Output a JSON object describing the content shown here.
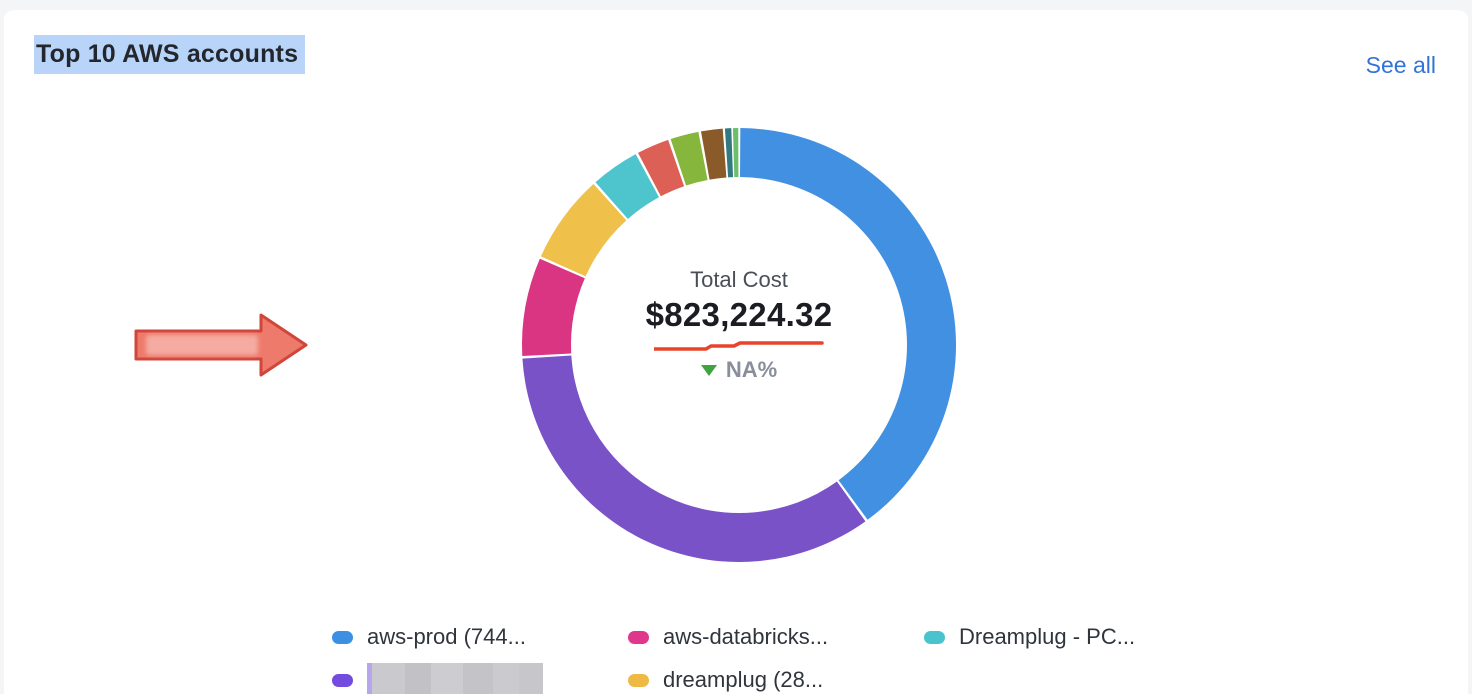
{
  "page": {
    "title": "Top 10 AWS accounts",
    "see_all_label": "See all"
  },
  "chart_data": {
    "type": "pie",
    "subtype": "donut",
    "title": "Top 10 AWS accounts",
    "center": {
      "label": "Total Cost",
      "value": "$823,224.32",
      "delta": "NA%",
      "delta_direction": "down",
      "delta_color": "#3FA33F"
    },
    "segments": [
      {
        "label": "aws-prod (744...",
        "percent": 40.0,
        "color": "#4190E2"
      },
      {
        "label": null,
        "redacted": true,
        "percent": 34.1,
        "color": "#7A52C8"
      },
      {
        "label": "aws-databricks...",
        "percent": 7.5,
        "color": "#D93583"
      },
      {
        "label": "dreamplug (28...",
        "percent": 6.8,
        "color": "#EFC04A"
      },
      {
        "label": "Dreamplug - PC...",
        "percent": 3.8,
        "color": "#4EC4CC"
      },
      {
        "label": null,
        "percent": 2.6,
        "color": "#DC6055"
      },
      {
        "label": null,
        "percent": 2.3,
        "color": "#86B73C"
      },
      {
        "label": null,
        "percent": 1.8,
        "color": "#8A5A28"
      },
      {
        "label": null,
        "percent": 0.6,
        "color": "#337A80"
      },
      {
        "label": null,
        "percent": 0.5,
        "color": "#6CBE6B"
      }
    ],
    "sparkline": {
      "color": "#E8432C",
      "points": [
        [
          0,
          10
        ],
        [
          52,
          10
        ],
        [
          57,
          7
        ],
        [
          80,
          7
        ],
        [
          86,
          4
        ],
        [
          168,
          4
        ]
      ]
    },
    "legend_position": "bottom"
  },
  "legend": {
    "items": [
      {
        "label": "aws-prod (744...",
        "color": "#3D8FE3",
        "redacted": false
      },
      {
        "label": "aws-databricks...",
        "color": "#E0368C",
        "redacted": false
      },
      {
        "label": "Dreamplug - PC...",
        "color": "#49C4CE",
        "redacted": false
      },
      {
        "label": "",
        "color": "#744BDF",
        "redacted": true
      },
      {
        "label": "dreamplug (28...",
        "color": "#EEBA45",
        "redacted": false
      }
    ]
  },
  "annotation": {
    "arrow_fill": "#EE7A6C",
    "arrow_border": "#D1463A",
    "arrow_inner": "#F5ABA1"
  }
}
